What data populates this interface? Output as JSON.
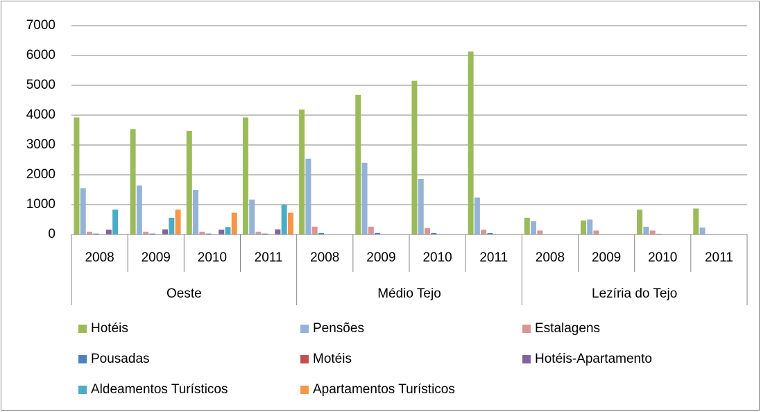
{
  "chart_data": {
    "type": "bar",
    "categories": [
      "2008",
      "2009",
      "2010",
      "2011",
      "2008",
      "2009",
      "2010",
      "2011",
      "2008",
      "2009",
      "2010",
      "2011"
    ],
    "groups": [
      "Oeste",
      "Médio Tejo",
      "Lezíria do Tejo"
    ],
    "series": [
      {
        "name": "Hotéis",
        "color": "#9bbb59",
        "values": [
          3920,
          3530,
          3470,
          3920,
          4190,
          4680,
          5150,
          6130,
          560,
          470,
          830,
          870
        ]
      },
      {
        "name": "Pensões",
        "color": "#95b3d7",
        "values": [
          1550,
          1640,
          1490,
          1170,
          2540,
          2400,
          1860,
          1240,
          440,
          500,
          260,
          230
        ]
      },
      {
        "name": "Estalagens",
        "color": "#d99694",
        "values": [
          90,
          90,
          90,
          90,
          260,
          260,
          210,
          160,
          130,
          130,
          130,
          0
        ]
      },
      {
        "name": "Pousadas",
        "color": "#4f81bd",
        "values": [
          30,
          30,
          30,
          30,
          50,
          50,
          50,
          50,
          10,
          10,
          20,
          0
        ]
      },
      {
        "name": "Motéis",
        "color": "#c0504d",
        "values": [
          0,
          0,
          0,
          0,
          0,
          0,
          0,
          0,
          0,
          0,
          0,
          0
        ]
      },
      {
        "name": "Hotéis-Apartamento",
        "color": "#8064a2",
        "values": [
          160,
          170,
          160,
          170,
          0,
          0,
          0,
          0,
          0,
          0,
          0,
          0
        ]
      },
      {
        "name": "Aldeamentos Turísticos",
        "color": "#4bacc6",
        "values": [
          830,
          560,
          250,
          1000,
          0,
          0,
          0,
          0,
          0,
          0,
          0,
          0
        ]
      },
      {
        "name": "Apartamentos Turísticos",
        "color": "#f79646",
        "values": [
          0,
          830,
          730,
          730,
          0,
          0,
          0,
          0,
          0,
          0,
          0,
          0
        ]
      }
    ],
    "ylim": [
      0,
      7000
    ],
    "yticks": [
      0,
      1000,
      2000,
      3000,
      4000,
      5000,
      6000,
      7000
    ],
    "grid": true,
    "legend": "bottom"
  }
}
